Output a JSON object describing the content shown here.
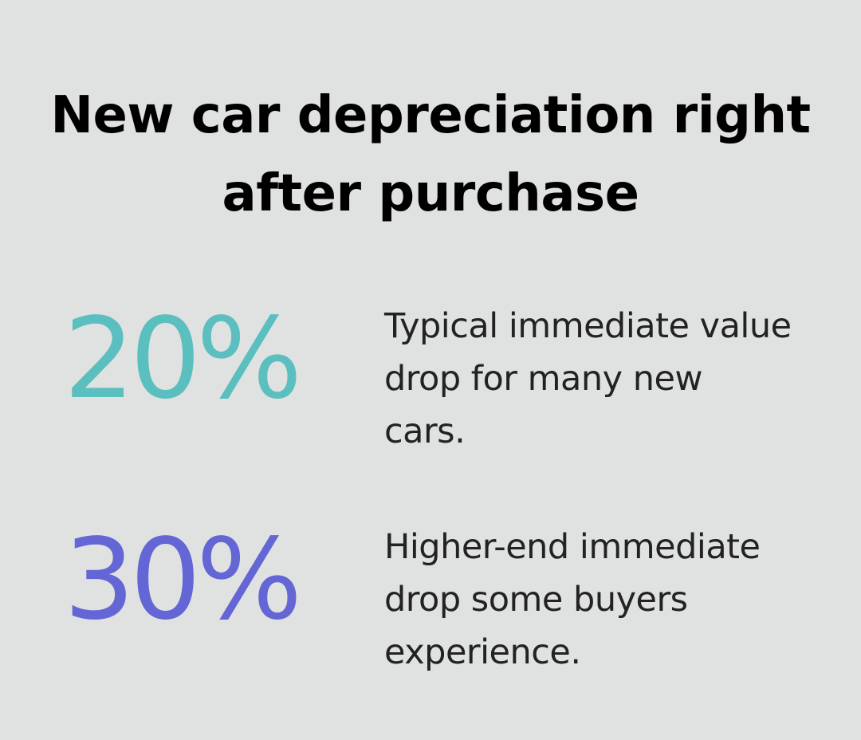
{
  "title": {
    "line1": "New car depreciation right",
    "line2": "after purchase"
  },
  "stats": [
    {
      "value": "20%",
      "description_lines": [
        "Typical immediate value",
        "drop for many new",
        "cars."
      ],
      "color": "#5bbfc0"
    },
    {
      "value": "30%",
      "description_lines": [
        "Higher-end immediate",
        "drop some buyers",
        "experience."
      ],
      "color": "#6366d4"
    }
  ]
}
